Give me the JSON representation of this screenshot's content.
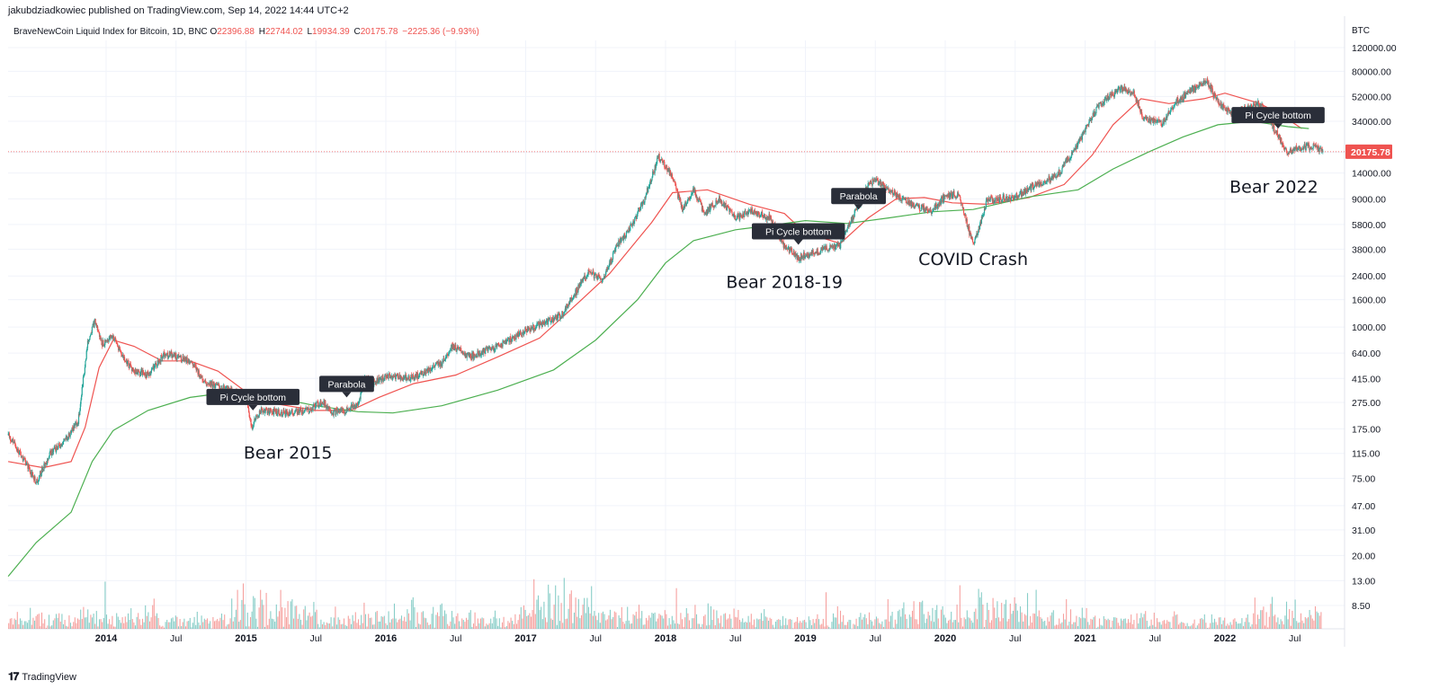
{
  "header": {
    "published_line": "jakubdziadkowiec published on TradingView.com, Sep 14, 2022 14:44 UTC+2"
  },
  "legend": {
    "symbol": "BraveNewCoin Liquid Index for Bitcoin, 1D, BNC",
    "open_label": "O",
    "open": "22396.88",
    "high_label": "H",
    "high": "22744.02",
    "low_label": "L",
    "low": "19934.39",
    "close_label": "C",
    "close": "20175.78",
    "change": "−2225.36 (−9.93%)"
  },
  "footer": {
    "logo": "TradingView"
  },
  "colors": {
    "up": "#26a69a",
    "down": "#ef5350",
    "ma_fast": "#ef5350",
    "ma_slow": "#4caf50",
    "grid": "#f0f3fa",
    "price_badge": "#ef5350",
    "label_bg": "#2a2e39"
  },
  "chart_data": {
    "type": "line",
    "scale": "log",
    "grid": true,
    "currency_label": "BTC",
    "current_price_label": "20175.78",
    "current_price": 20175.78,
    "y_ticks": [
      "120000.00",
      "80000.00",
      "52000.00",
      "34000.00",
      "20000.00",
      "14000.00",
      "9000.00",
      "5800.00",
      "3800.00",
      "2400.00",
      "1600.00",
      "1000.00",
      "640.00",
      "415.00",
      "275.00",
      "175.00",
      "115.00",
      "75.00",
      "47.00",
      "31.00",
      "20.00",
      "13.00",
      "8.50"
    ],
    "y_tick_values": [
      120000,
      80000,
      52000,
      34000,
      20000,
      14000,
      9000,
      5800,
      3800,
      2400,
      1600,
      1000,
      640,
      415,
      275,
      175,
      115,
      75,
      47,
      31,
      20,
      13,
      8.5
    ],
    "x_ticks": [
      {
        "label": "2014",
        "date": 2014.0
      },
      {
        "label": "Jul",
        "date": 2014.5
      },
      {
        "label": "2015",
        "date": 2015.0
      },
      {
        "label": "Jul",
        "date": 2015.5
      },
      {
        "label": "2016",
        "date": 2016.0
      },
      {
        "label": "Jul",
        "date": 2016.5
      },
      {
        "label": "2017",
        "date": 2017.0
      },
      {
        "label": "Jul",
        "date": 2017.5
      },
      {
        "label": "2018",
        "date": 2018.0
      },
      {
        "label": "Jul",
        "date": 2018.5
      },
      {
        "label": "2019",
        "date": 2019.0
      },
      {
        "label": "Jul",
        "date": 2019.5
      },
      {
        "label": "2020",
        "date": 2020.0
      },
      {
        "label": "Jul",
        "date": 2020.5
      },
      {
        "label": "2021",
        "date": 2021.0
      },
      {
        "label": "Jul",
        "date": 2021.5
      },
      {
        "label": "2022",
        "date": 2022.0
      },
      {
        "label": "Jul",
        "date": 2022.5
      }
    ],
    "series": [
      {
        "name": "",
        "kind": "price",
        "points": [
          [
            2013.3,
            160
          ],
          [
            2013.42,
            100
          ],
          [
            2013.5,
            70
          ],
          [
            2013.6,
            115
          ],
          [
            2013.7,
            140
          ],
          [
            2013.8,
            200
          ],
          [
            2013.87,
            800
          ],
          [
            2013.92,
            1100
          ],
          [
            2013.97,
            750
          ],
          [
            2014.05,
            850
          ],
          [
            2014.12,
            600
          ],
          [
            2014.2,
            470
          ],
          [
            2014.3,
            440
          ],
          [
            2014.42,
            640
          ],
          [
            2014.5,
            610
          ],
          [
            2014.6,
            560
          ],
          [
            2014.7,
            400
          ],
          [
            2014.8,
            360
          ],
          [
            2014.9,
            330
          ],
          [
            2015.0,
            300
          ],
          [
            2015.04,
            180
          ],
          [
            2015.1,
            240
          ],
          [
            2015.3,
            230
          ],
          [
            2015.45,
            240
          ],
          [
            2015.55,
            280
          ],
          [
            2015.62,
            230
          ],
          [
            2015.7,
            240
          ],
          [
            2015.8,
            260
          ],
          [
            2015.85,
            420
          ],
          [
            2015.9,
            380
          ],
          [
            2016.0,
            430
          ],
          [
            2016.2,
            420
          ],
          [
            2016.4,
            540
          ],
          [
            2016.47,
            720
          ],
          [
            2016.6,
            600
          ],
          [
            2016.8,
            720
          ],
          [
            2017.0,
            950
          ],
          [
            2017.15,
            1100
          ],
          [
            2017.25,
            1200
          ],
          [
            2017.45,
            2600
          ],
          [
            2017.55,
            2200
          ],
          [
            2017.65,
            4000
          ],
          [
            2017.75,
            5500
          ],
          [
            2017.85,
            9000
          ],
          [
            2017.95,
            18500
          ],
          [
            2018.05,
            13000
          ],
          [
            2018.12,
            7500
          ],
          [
            2018.2,
            10500
          ],
          [
            2018.28,
            7000
          ],
          [
            2018.38,
            9000
          ],
          [
            2018.5,
            6500
          ],
          [
            2018.62,
            7300
          ],
          [
            2018.75,
            6500
          ],
          [
            2018.85,
            4000
          ],
          [
            2018.95,
            3300
          ],
          [
            2019.1,
            3700
          ],
          [
            2019.25,
            4100
          ],
          [
            2019.35,
            7000
          ],
          [
            2019.45,
            11500
          ],
          [
            2019.5,
            12500
          ],
          [
            2019.6,
            10500
          ],
          [
            2019.75,
            8200
          ],
          [
            2019.9,
            7300
          ],
          [
            2020.0,
            9500
          ],
          [
            2020.1,
            9800
          ],
          [
            2020.2,
            4000
          ],
          [
            2020.3,
            8800
          ],
          [
            2020.5,
            9300
          ],
          [
            2020.65,
            11500
          ],
          [
            2020.8,
            13500
          ],
          [
            2020.9,
            19000
          ],
          [
            2021.0,
            29000
          ],
          [
            2021.1,
            45000
          ],
          [
            2021.25,
            60000
          ],
          [
            2021.35,
            55000
          ],
          [
            2021.42,
            35000
          ],
          [
            2021.55,
            33000
          ],
          [
            2021.65,
            47000
          ],
          [
            2021.8,
            63000
          ],
          [
            2021.87,
            68000
          ],
          [
            2021.95,
            47000
          ],
          [
            2022.05,
            38000
          ],
          [
            2022.15,
            43000
          ],
          [
            2022.25,
            46000
          ],
          [
            2022.35,
            30000
          ],
          [
            2022.45,
            20000
          ],
          [
            2022.55,
            22000
          ],
          [
            2022.65,
            22000
          ],
          [
            2022.7,
            20000
          ]
        ]
      },
      {
        "name": "",
        "kind": "ma_fast",
        "points": [
          [
            2013.3,
            100
          ],
          [
            2013.55,
            90
          ],
          [
            2013.75,
            100
          ],
          [
            2013.85,
            180
          ],
          [
            2013.95,
            500
          ],
          [
            2014.05,
            800
          ],
          [
            2014.2,
            720
          ],
          [
            2014.4,
            560
          ],
          [
            2014.6,
            560
          ],
          [
            2014.8,
            470
          ],
          [
            2015.0,
            330
          ],
          [
            2015.2,
            270
          ],
          [
            2015.5,
            240
          ],
          [
            2015.75,
            240
          ],
          [
            2015.95,
            300
          ],
          [
            2016.2,
            380
          ],
          [
            2016.5,
            440
          ],
          [
            2016.8,
            600
          ],
          [
            2017.1,
            830
          ],
          [
            2017.4,
            1600
          ],
          [
            2017.6,
            2500
          ],
          [
            2017.9,
            6000
          ],
          [
            2018.05,
            10000
          ],
          [
            2018.3,
            10500
          ],
          [
            2018.6,
            8200
          ],
          [
            2018.85,
            7000
          ],
          [
            2019.0,
            5000
          ],
          [
            2019.25,
            4200
          ],
          [
            2019.45,
            6500
          ],
          [
            2019.65,
            9000
          ],
          [
            2019.85,
            9200
          ],
          [
            2020.05,
            8400
          ],
          [
            2020.3,
            8200
          ],
          [
            2020.6,
            9200
          ],
          [
            2020.85,
            11500
          ],
          [
            2021.05,
            19000
          ],
          [
            2021.2,
            32000
          ],
          [
            2021.4,
            50000
          ],
          [
            2021.6,
            46000
          ],
          [
            2021.85,
            50000
          ],
          [
            2022.0,
            55000
          ],
          [
            2022.25,
            46000
          ],
          [
            2022.4,
            38000
          ],
          [
            2022.55,
            30000
          ]
        ]
      },
      {
        "name": "",
        "kind": "ma_slow",
        "points": [
          [
            2013.3,
            14
          ],
          [
            2013.5,
            25
          ],
          [
            2013.75,
            42
          ],
          [
            2013.9,
            100
          ],
          [
            2014.05,
            170
          ],
          [
            2014.3,
            240
          ],
          [
            2014.6,
            300
          ],
          [
            2014.9,
            330
          ],
          [
            2015.2,
            300
          ],
          [
            2015.5,
            260
          ],
          [
            2015.8,
            235
          ],
          [
            2016.05,
            230
          ],
          [
            2016.4,
            260
          ],
          [
            2016.8,
            340
          ],
          [
            2017.2,
            480
          ],
          [
            2017.5,
            800
          ],
          [
            2017.8,
            1600
          ],
          [
            2018.0,
            3000
          ],
          [
            2018.2,
            4400
          ],
          [
            2018.5,
            5300
          ],
          [
            2018.8,
            5800
          ],
          [
            2019.0,
            6200
          ],
          [
            2019.3,
            5900
          ],
          [
            2019.6,
            6500
          ],
          [
            2019.9,
            7200
          ],
          [
            2020.2,
            7500
          ],
          [
            2020.6,
            9300
          ],
          [
            2020.95,
            10500
          ],
          [
            2021.2,
            15000
          ],
          [
            2021.45,
            20000
          ],
          [
            2021.7,
            26000
          ],
          [
            2021.95,
            32000
          ],
          [
            2022.2,
            34000
          ],
          [
            2022.45,
            31000
          ],
          [
            2022.6,
            30000
          ]
        ]
      }
    ],
    "volume_profile": {
      "note_values_relative": [
        0.3,
        0.5,
        0.2,
        0.9,
        0.4,
        0.6,
        0.3,
        1.0,
        0.5,
        0.4,
        0.2,
        0.3,
        0.6,
        0.8,
        0.4,
        0.3,
        0.2,
        0.5
      ]
    },
    "markers": [
      {
        "text": "Pi Cycle bottom",
        "date": 2015.05,
        "price": 240
      },
      {
        "text": "Parabola",
        "date": 2015.72,
        "price": 300
      },
      {
        "text": "Pi Cycle bottom",
        "date": 2018.95,
        "price": 4100
      },
      {
        "text": "Parabola",
        "date": 2019.38,
        "price": 7500
      },
      {
        "text": "Pi Cycle bottom",
        "date": 2022.38,
        "price": 30000
      }
    ],
    "annotations": [
      {
        "text": "Bear 2015",
        "date": 2015.3,
        "price": 105
      },
      {
        "text": "Bear 2018-19",
        "date": 2018.85,
        "price": 1950
      },
      {
        "text": "COVID Crash",
        "date": 2020.2,
        "price": 2900
      },
      {
        "text": "Bear 2022",
        "date": 2022.35,
        "price": 10000
      }
    ]
  }
}
